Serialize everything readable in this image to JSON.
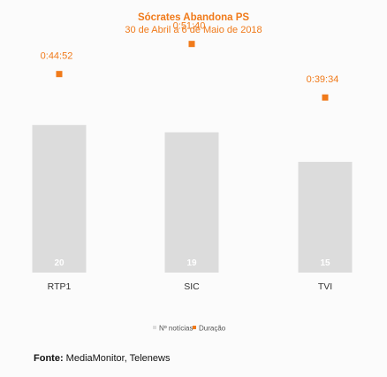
{
  "chart_data": {
    "type": "bar",
    "title": "Sócrates Abandona PS",
    "subtitle": "30 de Abril a 6 de Maio de 2018",
    "categories": [
      "RTP1",
      "SIC",
      "TVI"
    ],
    "series": [
      {
        "name": "Nº notícias",
        "values": [
          20,
          19,
          15
        ],
        "value_labels": [
          "20",
          "19",
          "15"
        ]
      },
      {
        "name": "Duração",
        "values": [
          "0:44:52",
          "0:51:40",
          "0:39:34"
        ],
        "value_labels": [
          "0:44:52",
          "0:51:40",
          "0:39:34"
        ]
      }
    ],
    "bar_ylim": [
      0,
      22
    ],
    "marker_ylim": [
      0,
      3600
    ],
    "grid": false,
    "legend_position": "bottom"
  },
  "colors": {
    "bar": "#dcdcdc",
    "marker": "#f07a1a",
    "title": "#f07a1a",
    "text": "#333333",
    "count_text": "#ffffff"
  },
  "source": {
    "label": "Fonte:",
    "text": "MediaMonitor, Telenews"
  }
}
